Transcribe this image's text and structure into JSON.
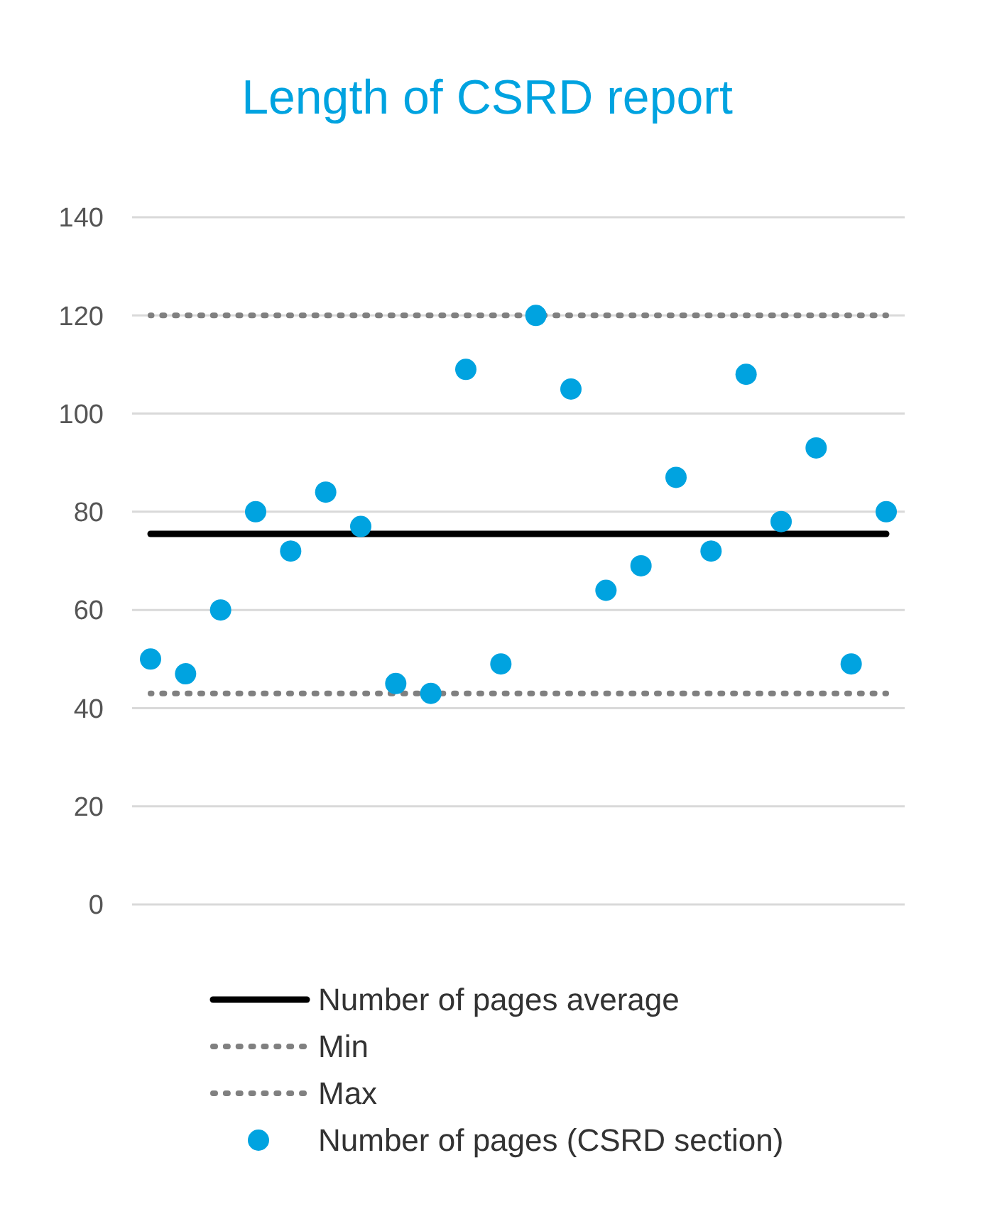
{
  "chart_data": {
    "type": "line",
    "title": "Length of CSRD report",
    "categories": [
      null,
      null,
      null,
      null,
      null,
      null,
      null,
      null,
      null,
      null,
      null,
      null,
      null,
      null,
      null,
      null,
      null,
      null,
      null,
      null,
      null,
      null
    ],
    "ylim": [
      0,
      140
    ],
    "yticks": [
      0,
      20,
      40,
      60,
      80,
      100,
      120,
      140
    ],
    "grid": "y",
    "legend": "bottom",
    "series": [
      {
        "name": "Number of pages average",
        "type": "line",
        "color": "#000000",
        "line_style": "solid",
        "values": [
          75.5,
          75.5,
          75.5,
          75.5,
          75.5,
          75.5,
          75.5,
          75.5,
          75.5,
          75.5,
          75.5,
          75.5,
          75.5,
          75.5,
          75.5,
          75.5,
          75.5,
          75.5,
          75.5,
          75.5,
          75.5,
          75.5
        ]
      },
      {
        "name": "Min",
        "type": "line",
        "color": "#808080",
        "line_style": "dotted",
        "values": [
          43,
          43,
          43,
          43,
          43,
          43,
          43,
          43,
          43,
          43,
          43,
          43,
          43,
          43,
          43,
          43,
          43,
          43,
          43,
          43,
          43,
          43
        ]
      },
      {
        "name": "Max",
        "type": "line",
        "color": "#808080",
        "line_style": "dotted",
        "values": [
          120,
          120,
          120,
          120,
          120,
          120,
          120,
          120,
          120,
          120,
          120,
          120,
          120,
          120,
          120,
          120,
          120,
          120,
          120,
          120,
          120,
          120
        ]
      },
      {
        "name": "Number of pages (CSRD section)",
        "type": "scatter",
        "color": "#00a3e0",
        "marker": "circle",
        "values": [
          50,
          47,
          60,
          80,
          72,
          84,
          77,
          45,
          43,
          109,
          49,
          120,
          105,
          64,
          69,
          87,
          72,
          108,
          78,
          93,
          49,
          80
        ]
      }
    ]
  }
}
